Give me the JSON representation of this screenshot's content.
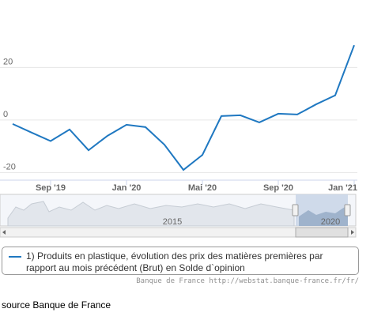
{
  "chart_data": {
    "type": "line",
    "categories": [
      null,
      null,
      "Sep '19",
      null,
      null,
      null,
      "Jan '20",
      null,
      null,
      null,
      "Mai '20",
      null,
      null,
      null,
      "Sep '20",
      null,
      null,
      null,
      "Jan '21"
    ],
    "series": [
      {
        "name": "1) Produits en plastique, évolution des prix des matières premières par rapport au mois précédent (Brut) en Solde d`opinion",
        "color": "#1f78c1",
        "values": [
          -1.5,
          -4.8,
          -8,
          -3.6,
          -11.5,
          -6,
          -1.8,
          -2.7,
          -9.4,
          -19,
          -13.3,
          1.5,
          1.8,
          -0.9,
          2.4,
          2.1,
          6,
          9.4,
          28.5
        ]
      }
    ],
    "ylim": [
      -22.9,
      45.7
    ],
    "yticks": [
      -20,
      0,
      20
    ],
    "grid": true,
    "navigator_labels": [
      "2015",
      "2020"
    ],
    "credit": "Banque de France http://webstat.banque-france.fr/fr/",
    "source": "source Banque de France"
  }
}
